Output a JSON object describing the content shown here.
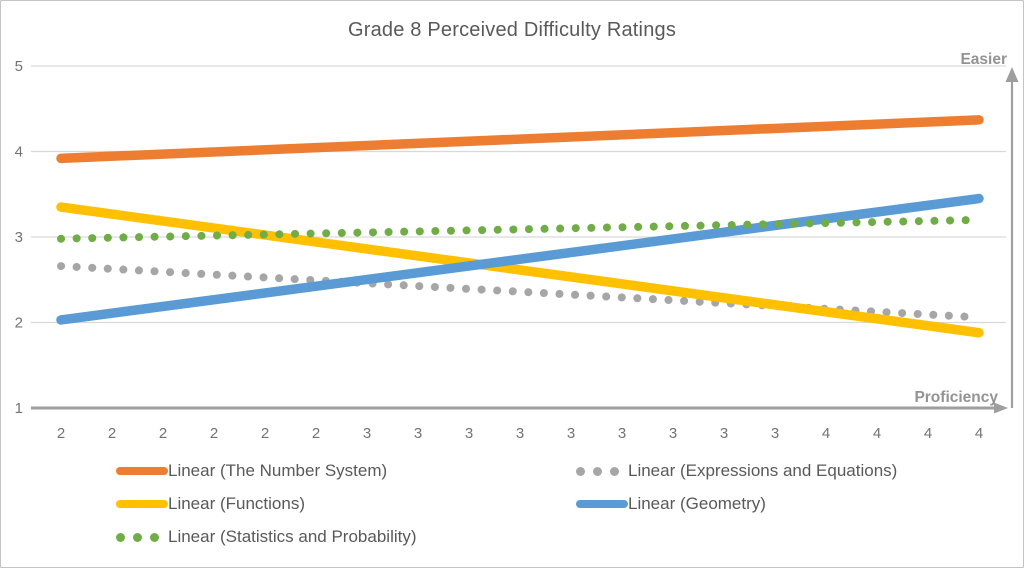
{
  "chart_data": {
    "type": "line",
    "title": "Grade 8 Perceived Difficulty Ratings",
    "xlabel": "Proficiency",
    "ylabel": "Easier",
    "ylim": [
      1,
      5
    ],
    "y_ticks": [
      1,
      2,
      3,
      4,
      5
    ],
    "x_tick_labels": [
      "2",
      "2",
      "2",
      "2",
      "2",
      "2",
      "3",
      "3",
      "3",
      "3",
      "3",
      "3",
      "3",
      "3",
      "3",
      "4",
      "4",
      "4",
      "4"
    ],
    "grid": "horizontal",
    "axis_annotations": {
      "y_arrow_label": "Easier",
      "x_arrow_label": "Proficiency"
    },
    "series": [
      {
        "name": "Linear (The Number System)",
        "color": "#ED7D31",
        "style": "solid",
        "trend_start": 3.92,
        "trend_end": 4.37
      },
      {
        "name": "Linear (Expressions and Equations)",
        "color": "#A6A6A6",
        "style": "dotted",
        "trend_start": 2.66,
        "trend_end": 2.06
      },
      {
        "name": "Linear (Functions)",
        "color": "#FFC000",
        "style": "solid",
        "trend_start": 3.35,
        "trend_end": 1.88
      },
      {
        "name": "Linear (Geometry)",
        "color": "#5B9BD5",
        "style": "solid",
        "trend_start": 2.03,
        "trend_end": 3.45
      },
      {
        "name": "Linear (Statistics and Probability)",
        "color": "#70AD47",
        "style": "dotted",
        "trend_start": 2.98,
        "trend_end": 3.2
      }
    ],
    "draw_order": [
      0,
      1,
      2,
      3,
      4
    ],
    "legend": {
      "position": "bottom",
      "rows": [
        [
          0,
          1
        ],
        [
          2,
          3
        ],
        [
          4
        ]
      ]
    },
    "text_colors": {
      "title": "#595959",
      "ticks": "#737373",
      "arrow_labels": "#939393",
      "legend": "#595959"
    },
    "gridline_color": "#D9D9D9",
    "axis_color": "#9E9E9E"
  }
}
